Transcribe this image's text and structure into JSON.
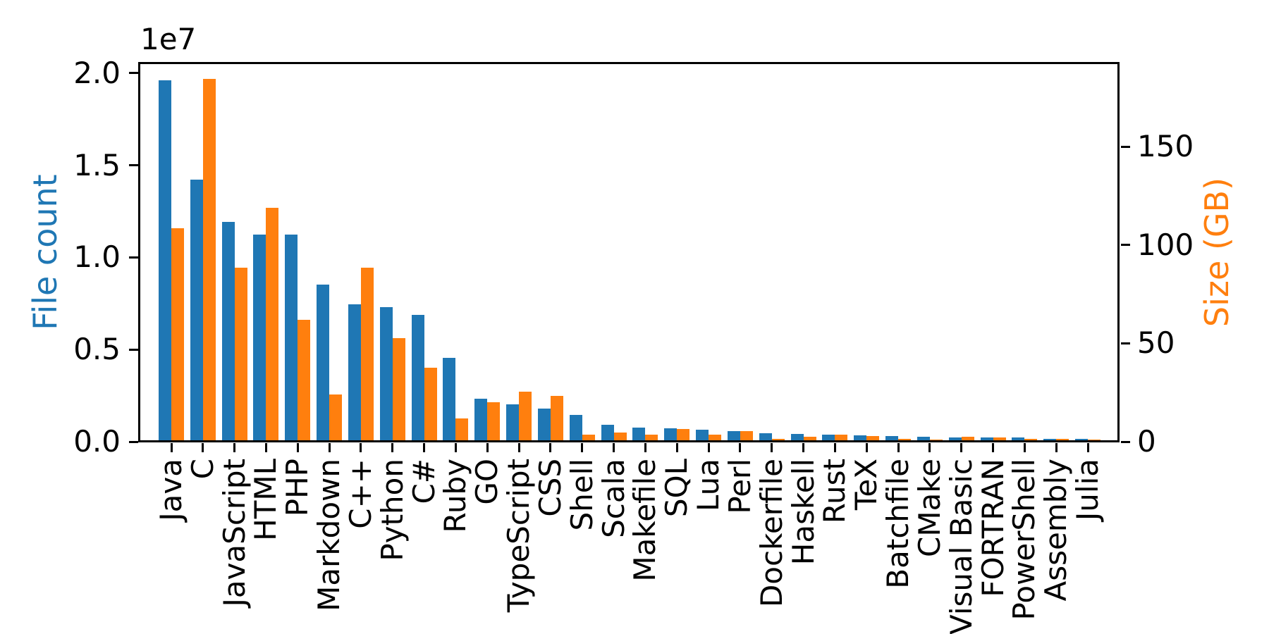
{
  "chart_data": {
    "type": "bar",
    "title": "",
    "grid": false,
    "legend": "none",
    "categories": [
      "Java",
      "C",
      "JavaScript",
      "HTML",
      "PHP",
      "Markdown",
      "C++",
      "Python",
      "C#",
      "Ruby",
      "GO",
      "TypeScript",
      "CSS",
      "Shell",
      "Scala",
      "Makefile",
      "SQL",
      "Lua",
      "Perl",
      "Dockerfile",
      "Haskell",
      "Rust",
      "TeX",
      "Batchfile",
      "CMake",
      "Visual Basic",
      "FORTRAN",
      "PowerShell",
      "Assembly",
      "Julia"
    ],
    "series": [
      {
        "name": "File count",
        "axis": "left",
        "color": "#1f77b4",
        "values": [
          19548190,
          14143113,
          11839883,
          11178557,
          11177610,
          8464626,
          7380520,
          7226626,
          6811652,
          4473331,
          2265436,
          1940406,
          1734406,
          1385648,
          835755,
          679430,
          656671,
          578554,
          497949,
          366505,
          340623,
          322431,
          251015,
          236945,
          175282,
          155652,
          142038,
          136846,
          82905,
          58317
        ]
      },
      {
        "name": "Size (GB)",
        "axis": "right",
        "color": "#ff7f0e",
        "values": [
          107.7,
          183.8,
          87.8,
          118.1,
          61.4,
          23.1,
          87.7,
          52.0,
          36.8,
          11.0,
          19.3,
          24.6,
          22.7,
          3.0,
          3.9,
          2.9,
          5.7,
          2.8,
          4.7,
          0.7,
          1.9,
          2.7,
          2.2,
          0.7,
          0.5,
          1.9,
          1.6,
          0.7,
          0.8,
          0.3
        ]
      }
    ],
    "left_axis": {
      "label": "File count",
      "color": "#1f77b4",
      "offset_label": "1e7",
      "tick_labels": [
        "0.0",
        "0.5",
        "1.0",
        "1.5",
        "2.0"
      ],
      "tick_values": [
        0,
        5000000,
        10000000,
        15000000,
        20000000
      ],
      "min": 0,
      "max": 20530000
    },
    "right_axis": {
      "label": "Size (GB)",
      "color": "#ff7f0e",
      "tick_labels": [
        "0",
        "50",
        "100",
        "150"
      ],
      "tick_values": [
        0,
        50,
        100,
        150
      ],
      "min": 0,
      "max": 192.3
    }
  }
}
